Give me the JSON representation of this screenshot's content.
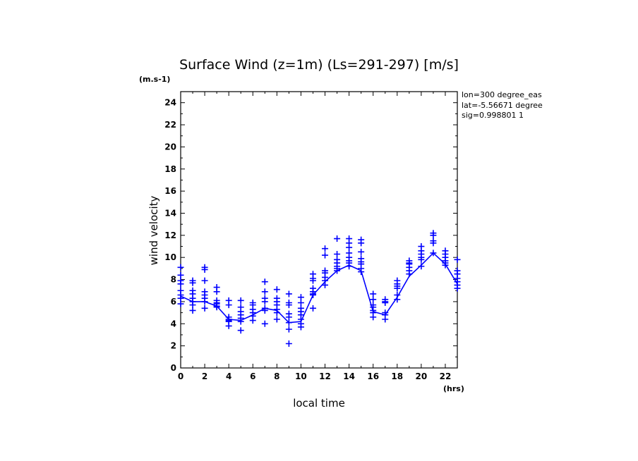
{
  "chart_data": {
    "type": "scatter",
    "title": "Surface Wind (z=1m) (Ls=291-297) [m/s]",
    "y_unit": "(m.s-1)",
    "x_unit": "(hrs)",
    "xlabel": "local time",
    "ylabel": "wind velocity",
    "xlim": [
      0,
      23
    ],
    "ylim": [
      0,
      25
    ],
    "x_ticks": [
      0,
      2,
      4,
      6,
      8,
      10,
      12,
      14,
      16,
      18,
      20,
      22
    ],
    "y_ticks": [
      0,
      2,
      4,
      6,
      8,
      10,
      12,
      14,
      16,
      18,
      20,
      22,
      24
    ],
    "grid": false,
    "color": "#0000ff",
    "info": [
      "lon=300 degree_eas",
      "lat=-5.56671 degree",
      "sig=0.998801 1"
    ],
    "series": [
      {
        "style": "line",
        "x": [
          0,
          1,
          2,
          3,
          4,
          5,
          6,
          7,
          8,
          9,
          10,
          11,
          12,
          13,
          14,
          15,
          16,
          17,
          18,
          19,
          20,
          21,
          22,
          23
        ],
        "y": [
          6.5,
          6.0,
          6.0,
          5.6,
          4.4,
          4.3,
          4.8,
          5.4,
          5.2,
          4.1,
          4.2,
          6.6,
          7.8,
          8.8,
          9.3,
          8.8,
          5.1,
          4.8,
          6.4,
          8.3,
          9.3,
          10.4,
          9.4,
          7.6
        ]
      },
      {
        "style": "plus",
        "points": [
          [
            0,
            9.1
          ],
          [
            0,
            8.4
          ],
          [
            0,
            7.9
          ],
          [
            0,
            7.6
          ],
          [
            0,
            7.0
          ],
          [
            0,
            6.6
          ],
          [
            0,
            6.3
          ],
          [
            0,
            5.8
          ],
          [
            1,
            7.9
          ],
          [
            1,
            7.7
          ],
          [
            1,
            7.0
          ],
          [
            1,
            6.7
          ],
          [
            1,
            6.3
          ],
          [
            1,
            6.0
          ],
          [
            1,
            5.7
          ],
          [
            1,
            5.2
          ],
          [
            2,
            9.1
          ],
          [
            2,
            8.9
          ],
          [
            2,
            7.9
          ],
          [
            2,
            6.9
          ],
          [
            2,
            6.6
          ],
          [
            2,
            6.3
          ],
          [
            2,
            6.0
          ],
          [
            2,
            5.4
          ],
          [
            3,
            7.3
          ],
          [
            3,
            6.9
          ],
          [
            3,
            6.1
          ],
          [
            3,
            5.9
          ],
          [
            3,
            5.8
          ],
          [
            3,
            5.6
          ],
          [
            3,
            5.5
          ],
          [
            4,
            6.1
          ],
          [
            4,
            5.7
          ],
          [
            4,
            4.6
          ],
          [
            4,
            4.4
          ],
          [
            4,
            4.3
          ],
          [
            4,
            4.2
          ],
          [
            4,
            3.8
          ],
          [
            5,
            6.1
          ],
          [
            5,
            5.5
          ],
          [
            5,
            5.1
          ],
          [
            5,
            4.8
          ],
          [
            5,
            4.5
          ],
          [
            5,
            4.2
          ],
          [
            5,
            3.4
          ],
          [
            6,
            5.9
          ],
          [
            6,
            5.7
          ],
          [
            6,
            5.3
          ],
          [
            6,
            5.0
          ],
          [
            6,
            4.7
          ],
          [
            6,
            4.3
          ],
          [
            7,
            7.8
          ],
          [
            7,
            6.9
          ],
          [
            7,
            6.3
          ],
          [
            7,
            6.0
          ],
          [
            7,
            5.4
          ],
          [
            7,
            5.2
          ],
          [
            7,
            4.0
          ],
          [
            8,
            7.1
          ],
          [
            8,
            6.3
          ],
          [
            8,
            6.0
          ],
          [
            8,
            5.7
          ],
          [
            8,
            5.3
          ],
          [
            8,
            5.0
          ],
          [
            8,
            4.4
          ],
          [
            9,
            6.7
          ],
          [
            9,
            5.9
          ],
          [
            9,
            5.7
          ],
          [
            9,
            4.9
          ],
          [
            9,
            4.6
          ],
          [
            9,
            4.1
          ],
          [
            9,
            3.5
          ],
          [
            9,
            2.2
          ],
          [
            10,
            6.4
          ],
          [
            10,
            5.9
          ],
          [
            10,
            5.4
          ],
          [
            10,
            5.1
          ],
          [
            10,
            4.8
          ],
          [
            10,
            4.4
          ],
          [
            10,
            4.0
          ],
          [
            10,
            3.7
          ],
          [
            11,
            8.5
          ],
          [
            11,
            8.1
          ],
          [
            11,
            7.9
          ],
          [
            11,
            7.2
          ],
          [
            11,
            6.9
          ],
          [
            11,
            6.7
          ],
          [
            11,
            6.6
          ],
          [
            11,
            5.4
          ],
          [
            12,
            10.8
          ],
          [
            12,
            10.2
          ],
          [
            12,
            8.8
          ],
          [
            12,
            8.6
          ],
          [
            12,
            8.2
          ],
          [
            12,
            7.9
          ],
          [
            12,
            7.5
          ],
          [
            13,
            11.7
          ],
          [
            13,
            10.3
          ],
          [
            13,
            9.8
          ],
          [
            13,
            9.5
          ],
          [
            13,
            9.2
          ],
          [
            13,
            9.0
          ],
          [
            13,
            8.8
          ],
          [
            14,
            11.7
          ],
          [
            14,
            11.3
          ],
          [
            14,
            10.9
          ],
          [
            14,
            10.4
          ],
          [
            14,
            10.0
          ],
          [
            14,
            9.7
          ],
          [
            14,
            9.5
          ],
          [
            14,
            9.2
          ],
          [
            15,
            11.6
          ],
          [
            15,
            11.3
          ],
          [
            15,
            10.5
          ],
          [
            15,
            9.9
          ],
          [
            15,
            9.6
          ],
          [
            15,
            9.4
          ],
          [
            15,
            9.0
          ],
          [
            15,
            8.7
          ],
          [
            16,
            6.7
          ],
          [
            16,
            6.2
          ],
          [
            16,
            5.7
          ],
          [
            16,
            5.5
          ],
          [
            16,
            5.2
          ],
          [
            16,
            5.0
          ],
          [
            16,
            4.6
          ],
          [
            17,
            6.2
          ],
          [
            17,
            6.0
          ],
          [
            17,
            5.9
          ],
          [
            17,
            5.0
          ],
          [
            17,
            4.8
          ],
          [
            17,
            4.4
          ],
          [
            18,
            7.9
          ],
          [
            18,
            7.6
          ],
          [
            18,
            7.4
          ],
          [
            18,
            7.2
          ],
          [
            18,
            6.6
          ],
          [
            18,
            6.2
          ],
          [
            19,
            9.7
          ],
          [
            19,
            9.5
          ],
          [
            19,
            9.4
          ],
          [
            19,
            9.1
          ],
          [
            19,
            8.8
          ],
          [
            19,
            8.5
          ],
          [
            20,
            11.0
          ],
          [
            20,
            10.6
          ],
          [
            20,
            10.3
          ],
          [
            20,
            10.0
          ],
          [
            20,
            9.8
          ],
          [
            20,
            9.2
          ],
          [
            21,
            12.2
          ],
          [
            21,
            12.0
          ],
          [
            21,
            11.5
          ],
          [
            21,
            11.3
          ],
          [
            21,
            10.4
          ],
          [
            22,
            10.6
          ],
          [
            22,
            10.3
          ],
          [
            22,
            10.0
          ],
          [
            22,
            9.7
          ],
          [
            22,
            9.5
          ],
          [
            22,
            9.3
          ],
          [
            23,
            9.8
          ],
          [
            23,
            8.8
          ],
          [
            23,
            8.5
          ],
          [
            23,
            8.1
          ],
          [
            23,
            7.8
          ],
          [
            23,
            7.5
          ],
          [
            23,
            7.2
          ]
        ]
      }
    ]
  }
}
